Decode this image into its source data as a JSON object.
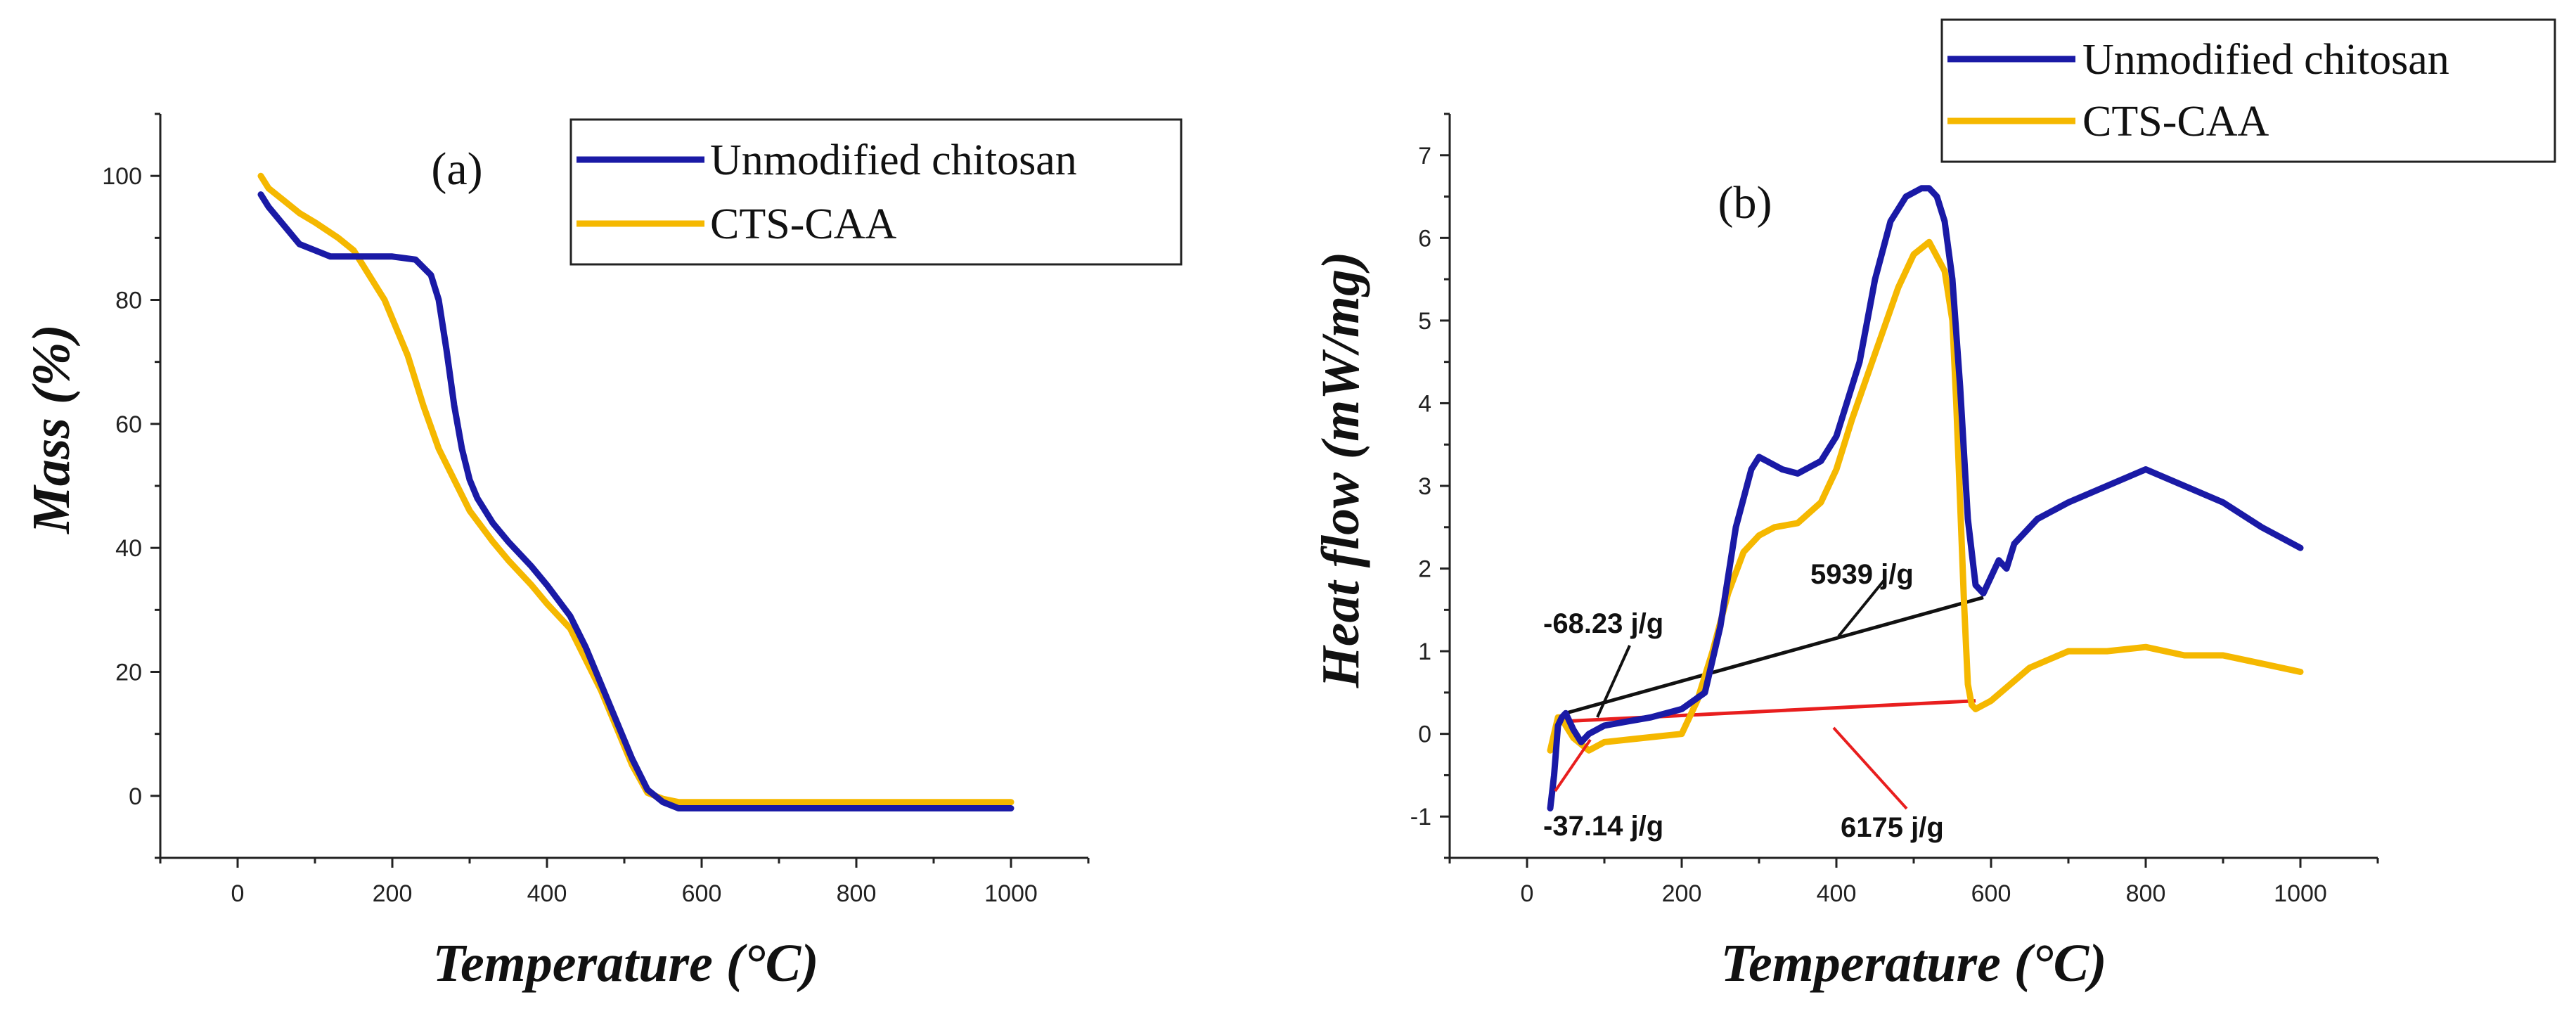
{
  "chart_data": [
    {
      "type": "line",
      "panel_label": "(a)",
      "xlabel": "Temperature (°C)",
      "ylabel": "Mass (%)",
      "xlim": [
        -100,
        1100
      ],
      "ylim": [
        -10,
        110
      ],
      "xticks": [
        0,
        200,
        400,
        600,
        800,
        1000
      ],
      "yticks": [
        0,
        20,
        40,
        60,
        80,
        100
      ],
      "legend_position": "top-right",
      "series": [
        {
          "name": "Unmodified chitosan",
          "color": "#1a1aa6",
          "x": [
            30,
            40,
            60,
            80,
            100,
            120,
            150,
            180,
            200,
            230,
            250,
            260,
            270,
            280,
            290,
            300,
            310,
            330,
            350,
            380,
            400,
            430,
            450,
            470,
            490,
            510,
            530,
            550,
            570,
            600,
            700,
            800,
            900,
            1000
          ],
          "y": [
            97,
            95,
            92,
            89,
            88,
            87,
            87,
            87,
            87,
            86.5,
            84,
            80,
            72,
            63,
            56,
            51,
            48,
            44,
            41,
            37,
            34,
            29,
            24,
            18,
            12,
            6,
            1,
            -1,
            -2,
            -2,
            -2,
            -2,
            -2,
            -2
          ]
        },
        {
          "name": "CTS-CAA",
          "color": "#f5b800",
          "x": [
            30,
            40,
            60,
            80,
            100,
            130,
            150,
            170,
            190,
            200,
            220,
            240,
            260,
            280,
            300,
            330,
            350,
            380,
            400,
            430,
            450,
            470,
            490,
            510,
            530,
            550,
            570,
            600,
            700,
            800,
            900,
            1000
          ],
          "y": [
            100,
            98,
            96,
            94,
            92.5,
            90,
            88,
            84,
            80,
            77,
            71,
            63,
            56,
            51,
            46,
            41,
            38,
            34,
            31,
            27,
            22,
            17,
            11,
            5,
            0.5,
            -0.5,
            -1,
            -1,
            -1,
            -1,
            -1,
            -1
          ]
        }
      ]
    },
    {
      "type": "line",
      "panel_label": "(b)",
      "xlabel": "Temperature (°C)",
      "ylabel": "Heat flow (mW/mg)",
      "xlim": [
        -100,
        1100
      ],
      "ylim": [
        -1.5,
        7.5
      ],
      "xticks": [
        0,
        200,
        400,
        600,
        800,
        1000
      ],
      "yticks": [
        -1,
        0,
        1,
        2,
        3,
        4,
        5,
        6,
        7
      ],
      "legend_position": "top-right",
      "series": [
        {
          "name": "Unmodified chitosan",
          "color": "#1a1aa6",
          "x": [
            30,
            35,
            40,
            45,
            50,
            60,
            70,
            80,
            100,
            130,
            160,
            200,
            230,
            250,
            270,
            290,
            300,
            310,
            330,
            350,
            380,
            400,
            430,
            450,
            470,
            490,
            510,
            520,
            530,
            540,
            550,
            560,
            570,
            580,
            590,
            600,
            610,
            620,
            630,
            660,
            700,
            750,
            800,
            850,
            900,
            950,
            1000
          ],
          "y": [
            -0.9,
            -0.5,
            0.1,
            0.2,
            0.25,
            0.05,
            -0.1,
            0.0,
            0.1,
            0.15,
            0.2,
            0.3,
            0.5,
            1.3,
            2.5,
            3.2,
            3.35,
            3.3,
            3.2,
            3.15,
            3.3,
            3.6,
            4.5,
            5.5,
            6.2,
            6.5,
            6.6,
            6.6,
            6.5,
            6.2,
            5.5,
            4.2,
            2.6,
            1.8,
            1.7,
            1.9,
            2.1,
            2.0,
            2.3,
            2.6,
            2.8,
            3.0,
            3.2,
            3.0,
            2.8,
            2.5,
            2.25
          ]
        },
        {
          "name": "CTS-CAA",
          "color": "#f5b800",
          "x": [
            30,
            35,
            40,
            45,
            50,
            60,
            80,
            100,
            150,
            200,
            220,
            240,
            260,
            280,
            300,
            320,
            350,
            380,
            400,
            420,
            450,
            480,
            500,
            520,
            540,
            550,
            555,
            560,
            565,
            570,
            575,
            580,
            600,
            650,
            700,
            750,
            800,
            850,
            900,
            950,
            1000
          ],
          "y": [
            -0.2,
            0.0,
            0.2,
            0.2,
            0.1,
            -0.05,
            -0.2,
            -0.1,
            -0.05,
            0.0,
            0.4,
            1.0,
            1.7,
            2.2,
            2.4,
            2.5,
            2.55,
            2.8,
            3.2,
            3.8,
            4.6,
            5.4,
            5.8,
            5.95,
            5.6,
            5.0,
            4.0,
            2.8,
            1.6,
            0.6,
            0.35,
            0.3,
            0.4,
            0.8,
            1.0,
            1.0,
            1.05,
            0.95,
            0.95,
            0.85,
            0.75
          ]
        }
      ],
      "annotations": [
        {
          "text": "-68.23 j/g",
          "color": "#111111"
        },
        {
          "text": "5939 j/g",
          "color": "#111111"
        },
        {
          "text": "-37.14 j/g",
          "color": "#111111"
        },
        {
          "text": "6175 j/g",
          "color": "#111111"
        }
      ],
      "baselines": [
        {
          "name": "blue-baseline",
          "color": "#111111",
          "x": [
            50,
            590
          ],
          "y": [
            0.25,
            1.65
          ]
        },
        {
          "name": "yellow-baseline",
          "color": "#e81e1e",
          "x": [
            45,
            580
          ],
          "y": [
            0.15,
            0.4
          ]
        }
      ]
    }
  ]
}
